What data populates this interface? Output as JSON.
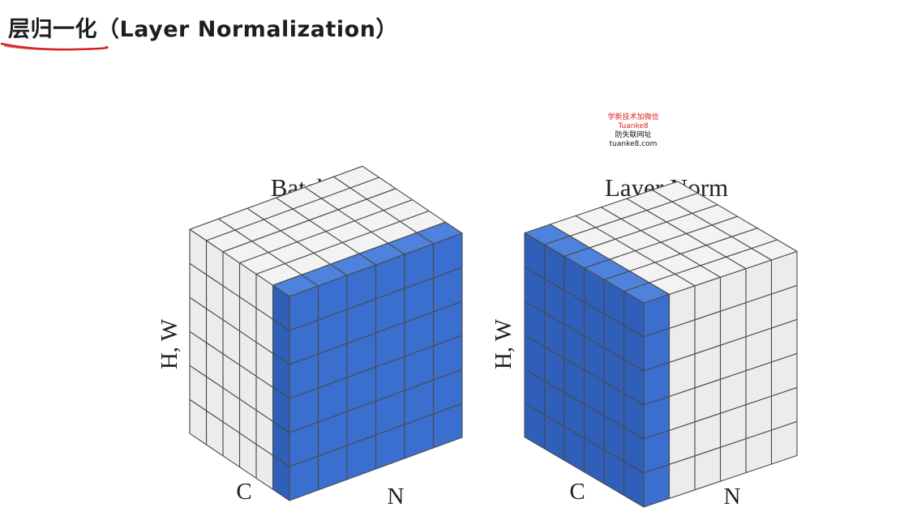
{
  "title": "层归一化（Layer Normalization）",
  "watermark": {
    "line1": "学新技术加微信",
    "line2": "Tuanke8",
    "line3": "防失联网址 tuanke8.com"
  },
  "diagram": {
    "grid_size": 6,
    "highlight_color": "#3a6fcf",
    "cell_color": "#ececec",
    "panels": [
      {
        "title": "Batch Norm",
        "height_axis_label": "H, W",
        "depth_axis_label": "C",
        "width_axis_label": "N",
        "highlight": "front-face"
      },
      {
        "title": "Layer Norm",
        "height_axis_label": "H, W",
        "depth_axis_label": "C",
        "width_axis_label": "N",
        "highlight": "side-face"
      }
    ]
  }
}
